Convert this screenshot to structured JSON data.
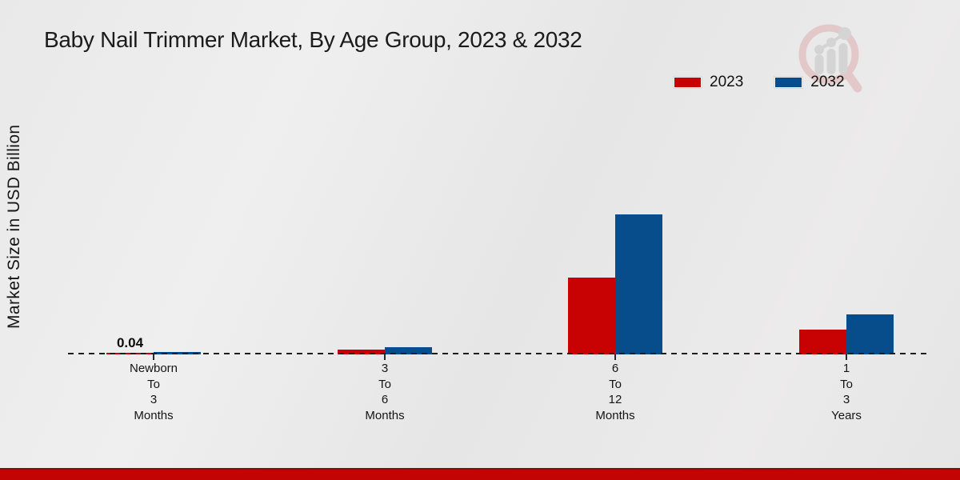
{
  "title": "Baby Nail Trimmer Market, By Age Group, 2023 & 2032",
  "watermark_icon": "market-research-magnifier-chart-logo",
  "legend": {
    "items": [
      {
        "label": "2023",
        "color": "#c80202"
      },
      {
        "label": "2032",
        "color": "#074d8c"
      }
    ]
  },
  "chart_data": {
    "type": "bar",
    "title": "Baby Nail Trimmer Market, By Age Group, 2023 & 2032",
    "xlabel": "",
    "ylabel": "Market Size in USD Billion",
    "ylim": [
      0,
      4
    ],
    "grid": false,
    "baseline_style": "dashed zero line",
    "legend_position": "top-right",
    "categories": [
      "Newborn To 3 Months",
      "3 To 6 Months",
      "6 To 12 Months",
      "1 To 3 Years"
    ],
    "category_lines": [
      [
        "Newborn",
        "To",
        "3",
        "Months"
      ],
      [
        "3",
        "To",
        "6",
        "Months"
      ],
      [
        "6",
        "To",
        "12",
        "Months"
      ],
      [
        "1",
        "To",
        "3",
        "Years"
      ]
    ],
    "series": [
      {
        "name": "2023",
        "color": "#c80202",
        "values": [
          0.04,
          0.12,
          1.92,
          0.63
        ]
      },
      {
        "name": "2032",
        "color": "#074d8c",
        "values": [
          0.07,
          0.18,
          3.5,
          1.01
        ]
      }
    ],
    "bar_labels": [
      {
        "series_index": 0,
        "category_index": 0,
        "text": "0.04"
      }
    ]
  },
  "footer": {
    "band_color": "#c20404"
  }
}
